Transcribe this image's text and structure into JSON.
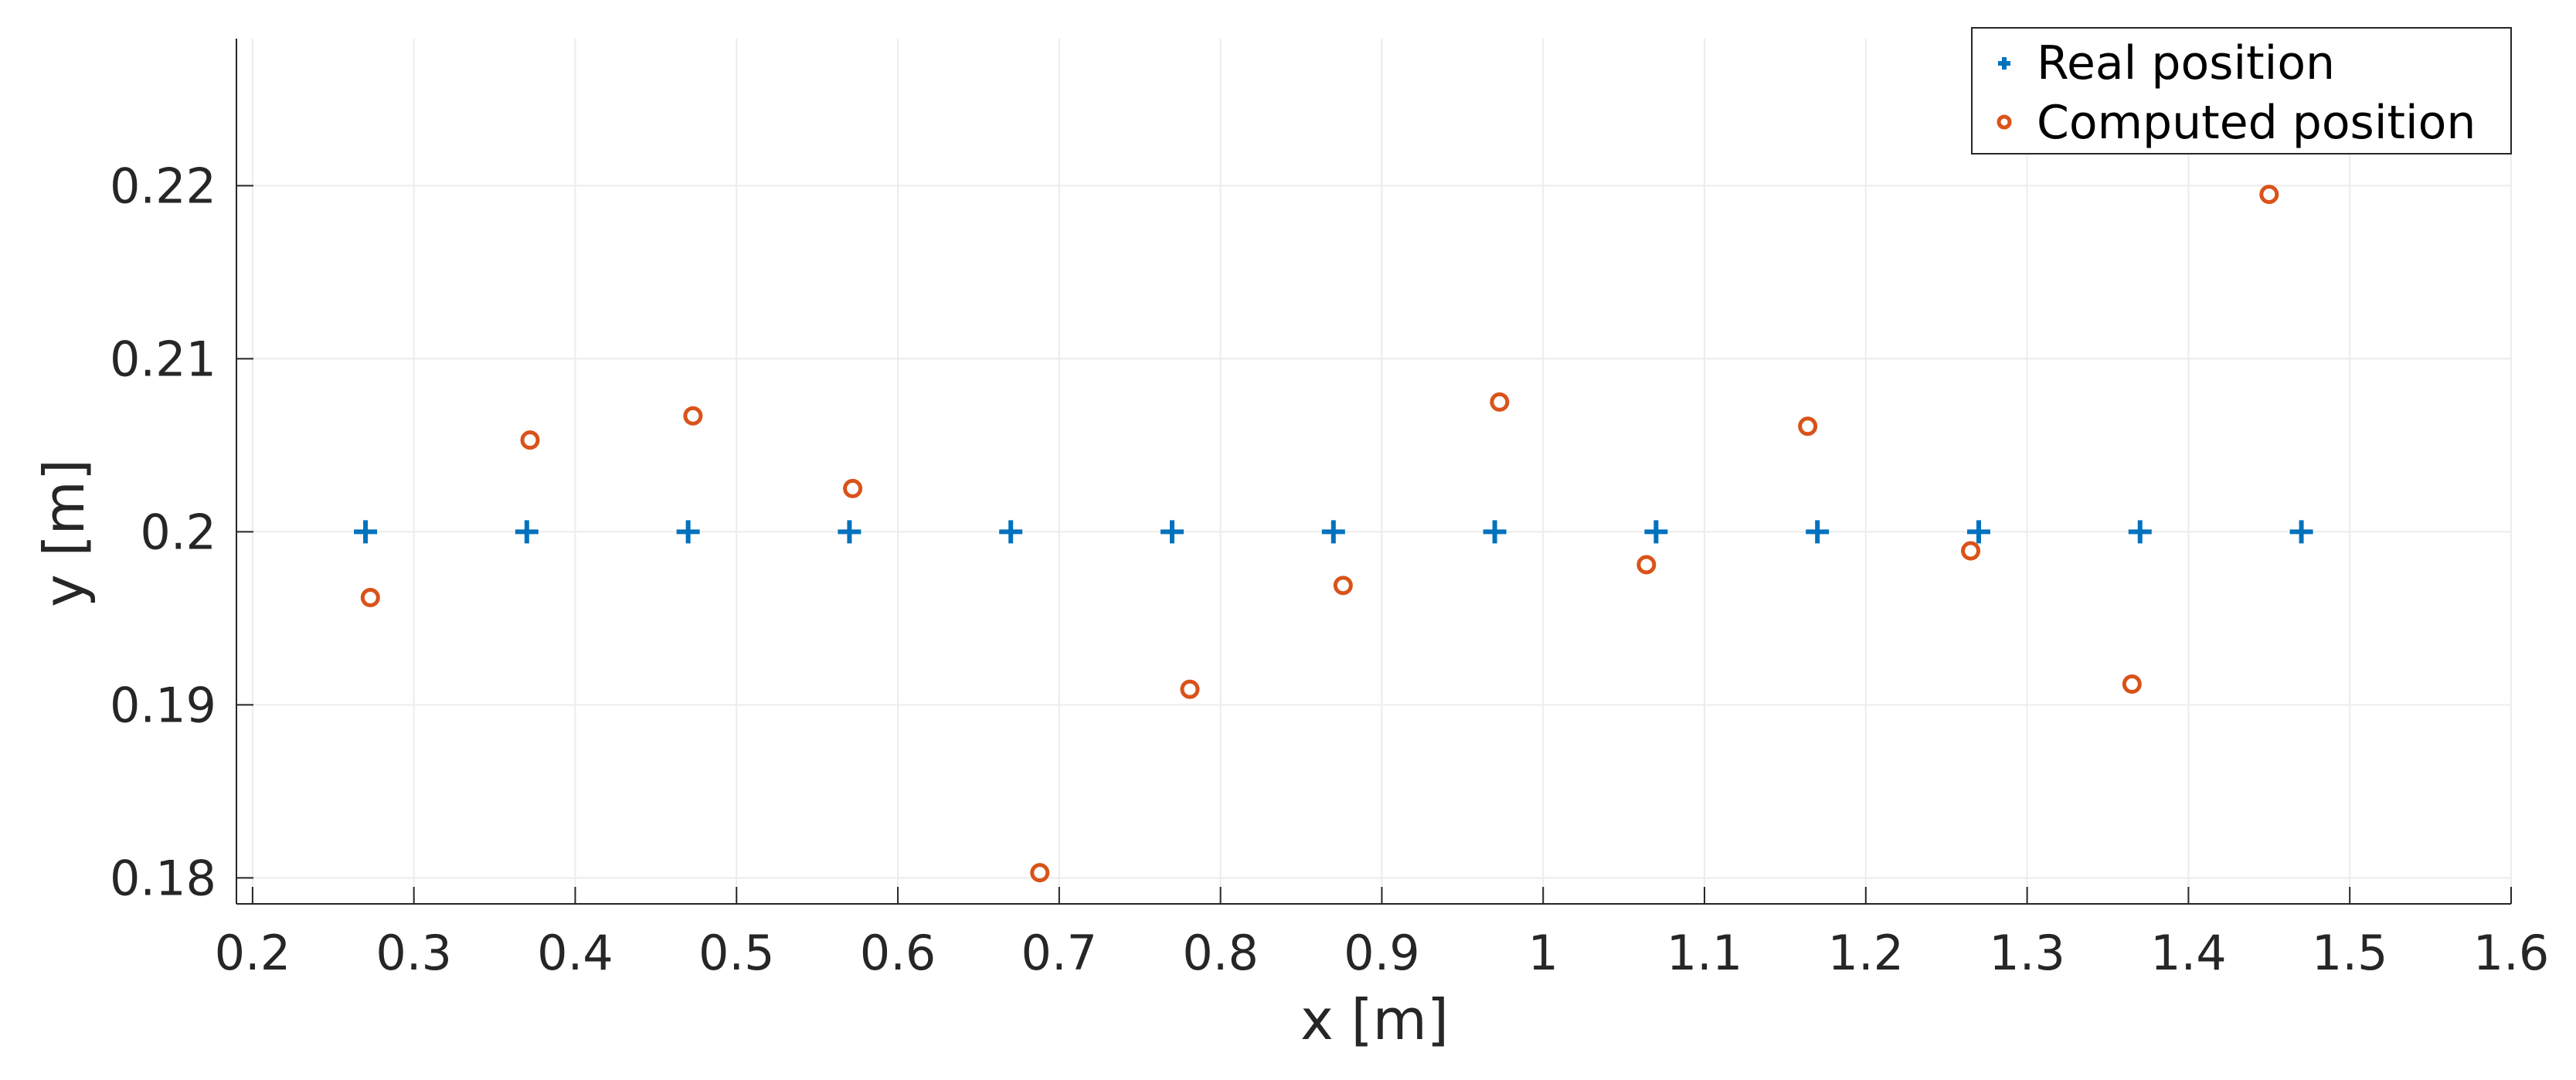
{
  "chart_data": {
    "type": "scatter",
    "xlabel": "x [m]",
    "ylabel": "y [m]",
    "xlim": [
      0.19,
      1.6
    ],
    "ylim": [
      0.1785,
      0.2285
    ],
    "xticks": [
      0.2,
      0.3,
      0.4,
      0.5,
      0.6,
      0.7,
      0.8,
      0.9,
      1,
      1.1,
      1.2,
      1.3,
      1.4,
      1.5,
      1.6
    ],
    "xtick_labels": [
      "0.2",
      "0.3",
      "0.4",
      "0.5",
      "0.6",
      "0.7",
      "0.8",
      "0.9",
      "1",
      "1.1",
      "1.2",
      "1.3",
      "1.4",
      "1.5",
      "1.6"
    ],
    "yticks": [
      0.18,
      0.19,
      0.2,
      0.21,
      0.22
    ],
    "ytick_labels": [
      "0.18",
      "0.19",
      "0.2",
      "0.21",
      "0.22"
    ],
    "grid": true,
    "legend_position": "top-right",
    "series": [
      {
        "name": "Real position",
        "marker": "plus",
        "color": "#0072BD",
        "points": [
          [
            0.27,
            0.2
          ],
          [
            0.37,
            0.2
          ],
          [
            0.47,
            0.2
          ],
          [
            0.57,
            0.2
          ],
          [
            0.67,
            0.2
          ],
          [
            0.77,
            0.2
          ],
          [
            0.87,
            0.2
          ],
          [
            0.97,
            0.2
          ],
          [
            1.07,
            0.2
          ],
          [
            1.17,
            0.2
          ],
          [
            1.27,
            0.2
          ],
          [
            1.37,
            0.2
          ],
          [
            1.47,
            0.2
          ]
        ]
      },
      {
        "name": "Computed position",
        "marker": "circle",
        "color": "#D95319",
        "points": [
          [
            0.273,
            0.1962
          ],
          [
            0.372,
            0.2053
          ],
          [
            0.473,
            0.2067
          ],
          [
            0.572,
            0.2025
          ],
          [
            0.688,
            0.1803
          ],
          [
            0.781,
            0.1909
          ],
          [
            0.876,
            0.1969
          ],
          [
            0.973,
            0.2075
          ],
          [
            1.064,
            0.1981
          ],
          [
            1.164,
            0.2061
          ],
          [
            1.265,
            0.1989
          ],
          [
            1.365,
            0.1912
          ],
          [
            1.45,
            0.2195
          ]
        ]
      }
    ]
  }
}
